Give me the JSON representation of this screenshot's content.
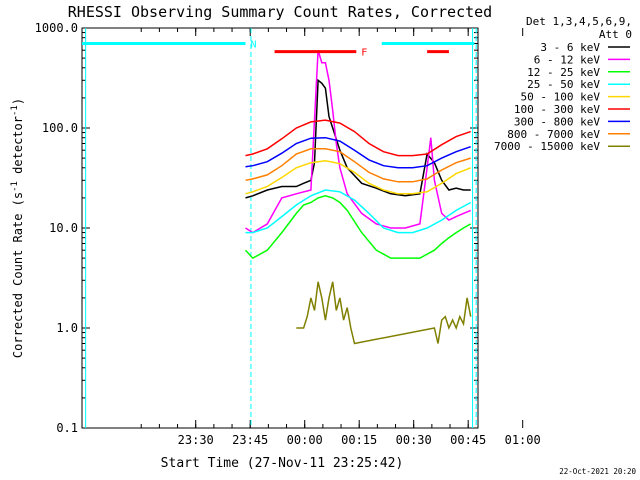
{
  "chart_data": {
    "type": "line",
    "title": "RHESSI Observing Summary Count Rates, Corrected",
    "xlabel": "Start Time (27-Nov-11 23:25:42)",
    "ylabel": "Corrected Count Rate (s⁻¹ detector⁻¹)",
    "ylabel_parts": {
      "main": "Corrected Count Rate (s",
      "sup1": "-1",
      "mid": " detector",
      "sup2": "-1",
      "end": ")"
    },
    "yscale": "log",
    "xlim": [
      -27,
      82
    ],
    "ylim": [
      0.1,
      1000
    ],
    "x_unit": "minutes since 23:25:42 on 27-Nov-11",
    "x_ticks": [
      {
        "value": 4.3,
        "label": "23:30"
      },
      {
        "value": 19.3,
        "label": "23:45"
      },
      {
        "value": 34.3,
        "label": "00:00"
      },
      {
        "value": 49.3,
        "label": "00:15"
      },
      {
        "value": 64.3,
        "label": "00:30"
      },
      {
        "value": 79.3,
        "label": "00:45"
      },
      {
        "value": 94.3,
        "label": "01:00"
      }
    ],
    "y_ticks": [
      {
        "value": 0.1,
        "label": "0.1"
      },
      {
        "value": 1,
        "label": "1.0"
      },
      {
        "value": 10,
        "label": "10.0"
      },
      {
        "value": 100,
        "label": "100.0"
      },
      {
        "value": 1000,
        "label": "1000.0"
      }
    ],
    "legend": {
      "placement": "right",
      "header": [
        "Det 1,3,4,5,6,9,",
        "Att 0"
      ],
      "entries": [
        {
          "label": "3 - 6 keV",
          "color": "#000000"
        },
        {
          "label": "6 - 12 keV",
          "color": "#ff00ff"
        },
        {
          "label": "12 - 25 keV",
          "color": "#00ff00"
        },
        {
          "label": "25 - 50 keV",
          "color": "#00ffff"
        },
        {
          "label": "50 - 100 keV",
          "color": "#ffd700"
        },
        {
          "label": "100 - 300 keV",
          "color": "#ff0000"
        },
        {
          "label": "300 - 800 keV",
          "color": "#0000ff"
        },
        {
          "label": "800 - 7000 keV",
          "color": "#ff8000"
        },
        {
          "label": "7000 - 15000 keV",
          "color": "#808000"
        }
      ]
    },
    "series": [
      {
        "name": "3 - 6 keV",
        "color": "#000000",
        "x": [
          18,
          20,
          24,
          28,
          32,
          34,
          36,
          37,
          38,
          39,
          40,
          41,
          42,
          44,
          46,
          50,
          54,
          58,
          62,
          66,
          68,
          70,
          72,
          74,
          76,
          78,
          80
        ],
        "y": [
          20,
          21,
          24,
          26,
          26,
          28,
          30,
          45,
          300,
          280,
          250,
          130,
          100,
          60,
          40,
          28,
          25,
          22,
          21,
          22,
          55,
          45,
          30,
          24,
          25,
          24,
          24
        ]
      },
      {
        "name": "6 - 12 keV",
        "color": "#ff00ff",
        "x": [
          18,
          20,
          24,
          28,
          32,
          36,
          38,
          39,
          40,
          41,
          42,
          43,
          44,
          46,
          50,
          54,
          58,
          62,
          66,
          68,
          69,
          70,
          72,
          74,
          76,
          78,
          80
        ],
        "y": [
          10,
          9,
          11,
          20,
          22,
          24,
          600,
          450,
          450,
          300,
          150,
          70,
          40,
          22,
          14,
          11,
          10,
          10,
          11,
          40,
          80,
          30,
          14,
          12,
          13,
          14,
          15
        ]
      },
      {
        "name": "12 - 25 keV",
        "color": "#00ff00",
        "x": [
          18,
          20,
          24,
          28,
          32,
          34,
          36,
          38,
          40,
          42,
          44,
          46,
          50,
          54,
          58,
          62,
          66,
          70,
          72,
          74,
          76,
          78,
          80
        ],
        "y": [
          6,
          5,
          6,
          9,
          14,
          17,
          18,
          20,
          21,
          20,
          18,
          15,
          9,
          6,
          5,
          5,
          5,
          6,
          7,
          8,
          9,
          10,
          11
        ]
      },
      {
        "name": "25 - 50 keV",
        "color": "#00ffff",
        "x": [
          18,
          20,
          24,
          28,
          32,
          36,
          40,
          44,
          48,
          52,
          56,
          60,
          64,
          68,
          72,
          76,
          80
        ],
        "y": [
          9,
          9,
          10,
          13,
          17,
          21,
          24,
          23,
          19,
          14,
          10,
          9,
          9,
          10,
          12,
          15,
          18
        ]
      },
      {
        "name": "50 - 100 keV",
        "color": "#ffd700",
        "x": [
          18,
          20,
          24,
          28,
          32,
          36,
          40,
          44,
          48,
          52,
          56,
          60,
          64,
          68,
          72,
          76,
          80
        ],
        "y": [
          22,
          23,
          26,
          32,
          40,
          45,
          47,
          44,
          36,
          28,
          24,
          22,
          22,
          23,
          28,
          35,
          40
        ]
      },
      {
        "name": "100 - 300 keV",
        "color": "#ff0000",
        "x": [
          18,
          20,
          24,
          28,
          32,
          36,
          40,
          44,
          48,
          52,
          56,
          60,
          64,
          68,
          72,
          76,
          80
        ],
        "y": [
          53,
          55,
          62,
          78,
          100,
          115,
          120,
          112,
          92,
          70,
          58,
          53,
          53,
          55,
          68,
          82,
          92
        ]
      },
      {
        "name": "300 - 800 keV",
        "color": "#0000ff",
        "x": [
          18,
          20,
          24,
          28,
          32,
          36,
          40,
          44,
          48,
          52,
          56,
          60,
          64,
          68,
          72,
          76,
          80
        ],
        "y": [
          41,
          42,
          46,
          56,
          70,
          79,
          80,
          74,
          60,
          48,
          42,
          40,
          40,
          42,
          50,
          58,
          65
        ]
      },
      {
        "name": "800 - 7000 keV",
        "color": "#ff8000",
        "x": [
          18,
          20,
          24,
          28,
          32,
          36,
          40,
          44,
          48,
          52,
          56,
          60,
          64,
          68,
          72,
          76,
          80
        ],
        "y": [
          30,
          31,
          34,
          42,
          55,
          62,
          62,
          58,
          46,
          36,
          31,
          29,
          29,
          31,
          38,
          45,
          50
        ]
      },
      {
        "name": "7000 - 15000 keV",
        "color": "#808000",
        "x": [
          32,
          34,
          35,
          36,
          37,
          38,
          39,
          40,
          41,
          42,
          43,
          44,
          45,
          46,
          47,
          48,
          70,
          71,
          72,
          73,
          74,
          75,
          76,
          77,
          78,
          79,
          80
        ],
        "y": [
          1.0,
          1.0,
          1.3,
          2.0,
          1.5,
          2.9,
          2.0,
          1.2,
          2.0,
          2.9,
          1.5,
          2.0,
          1.2,
          1.6,
          1.0,
          0.7,
          1.0,
          0.7,
          1.2,
          1.3,
          1.0,
          1.2,
          1.0,
          1.3,
          1.1,
          2.0,
          1.3
        ]
      }
    ],
    "flags": [
      {
        "label": "N",
        "color": "#00ffff",
        "x": [
          -27,
          18
        ],
        "y": 700
      },
      {
        "label": "",
        "color": "#00ffff",
        "x": [
          55.5,
          81
        ],
        "y": 700
      },
      {
        "label": "F",
        "color": "#ff0000",
        "x": [
          26,
          48.5
        ],
        "y": 580
      },
      {
        "label": "",
        "color": "#ff0000",
        "x": [
          68,
          74
        ],
        "y": 580
      }
    ],
    "vlines": [
      {
        "x": -26,
        "color": "#00ffff",
        "style": "solid"
      },
      {
        "x": 19.5,
        "color": "#00ffff",
        "style": "dashed"
      },
      {
        "x": 80.5,
        "color": "#00ffff",
        "style": "solid"
      },
      {
        "x": 81.5,
        "color": "#00ffff",
        "style": "dashed"
      }
    ]
  },
  "footer": {
    "timestamp": "22-Oct-2021 20:20"
  }
}
